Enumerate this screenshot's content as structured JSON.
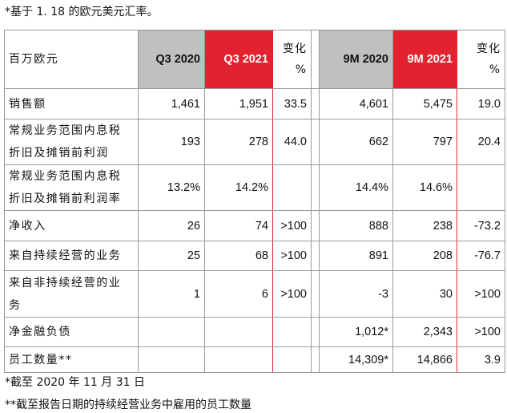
{
  "header": {
    "note": "*基于 1. 18 的欧元美元汇率。"
  },
  "table": {
    "headers": [
      "百万欧元",
      "Q3 2020",
      "Q3 2021",
      "变化 %",
      null,
      "9M 2020",
      "9M 2021",
      "变化 %"
    ],
    "rows": [
      [
        "销售额",
        "1,461",
        "1,951",
        "33.5",
        null,
        "4,601",
        "5,475",
        "19.0"
      ],
      [
        "常规业务范围内息税折旧及摊销前利润",
        "193",
        "278",
        "44.0",
        null,
        "662",
        "797",
        "20.4"
      ],
      [
        "常规业务范围内息税折旧及摊销前利润率",
        "13.2%",
        "14.2%",
        null,
        null,
        "14.4%",
        "14.6%",
        null
      ],
      [
        "净收入",
        "26",
        "74",
        ">100",
        null,
        "888",
        "238",
        "-73.2"
      ],
      [
        "来自持续经营的业务",
        "25",
        "68",
        ">100",
        null,
        "891",
        "208",
        "-76.7"
      ],
      [
        "来自非持续经营的业务",
        "1",
        "6",
        ">100",
        null,
        "-3",
        "30",
        ">100"
      ],
      [
        "净金融负债",
        null,
        null,
        null,
        null,
        "1,012*",
        "2,343",
        ">100"
      ],
      [
        "员工数量**",
        null,
        null,
        null,
        null,
        "14,309*",
        "14,866",
        "3.9"
      ]
    ]
  },
  "footnotes": [
    "*截至 2020 年 11 月 31 日",
    "**截至报告日期的持续经营业务中雇用的员工数量"
  ]
}
